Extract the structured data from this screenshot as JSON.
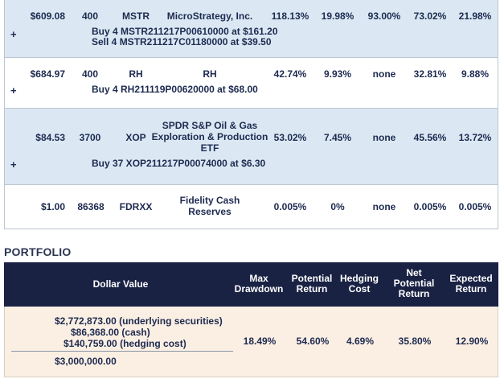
{
  "holdings": [
    {
      "value": "$609.08",
      "shares": "400",
      "symbol": "MSTR",
      "name": "MicroStrategy, Inc.",
      "m1": "118.13%",
      "m2": "19.98%",
      "m3": "93.00%",
      "m4": "73.02%",
      "m5": "21.98%",
      "trades": [
        "Buy 4 MSTR211217P00610000 at $161.20",
        "Sell 4 MSTR211217C01180000 at $39.50"
      ]
    },
    {
      "value": "$684.97",
      "shares": "400",
      "symbol": "RH",
      "name": "RH",
      "m1": "42.74%",
      "m2": "9.93%",
      "m3": "none",
      "m4": "32.81%",
      "m5": "9.88%",
      "trades": [
        "Buy 4 RH211119P00620000 at $68.00"
      ]
    },
    {
      "value": "$84.53",
      "shares": "3700",
      "symbol": "XOP",
      "name": "SPDR S&P Oil & Gas Exploration & Production ETF",
      "m1": "53.02%",
      "m2": "7.45%",
      "m3": "none",
      "m4": "45.56%",
      "m5": "13.72%",
      "trades": [
        "Buy 37 XOP211217P00074000 at $6.30"
      ]
    },
    {
      "value": "$1.00",
      "shares": "86368",
      "symbol": "FDRXX",
      "name": "Fidelity Cash Reserves",
      "m1": "0.005%",
      "m2": "0%",
      "m3": "none",
      "m4": "0.005%",
      "m5": "0.005%"
    }
  ],
  "plus_symbol": "+",
  "portfolio": {
    "title": "PORTFOLIO",
    "headers": {
      "dollar_value": "Dollar Value",
      "max_drawdown": [
        "Max",
        "Drawdown"
      ],
      "potential_return": [
        "Potential",
        "Return"
      ],
      "hedging_cost": [
        "Hedging",
        "Cost"
      ],
      "net_potential_return": [
        "Net",
        "Potential",
        "Return"
      ],
      "expected_return": [
        "Expected",
        "Return"
      ]
    },
    "lines": [
      "$2,772,873.00 (underlying securities)",
      "$86,368.00 (cash)",
      "$140,759.00 (hedging cost)"
    ],
    "total": "$3,000,000.00",
    "max_drawdown": "18.49%",
    "potential_return": "54.60%",
    "hedging_cost": "4.69%",
    "net_potential_return": "35.80%",
    "expected_return": "12.90%"
  }
}
